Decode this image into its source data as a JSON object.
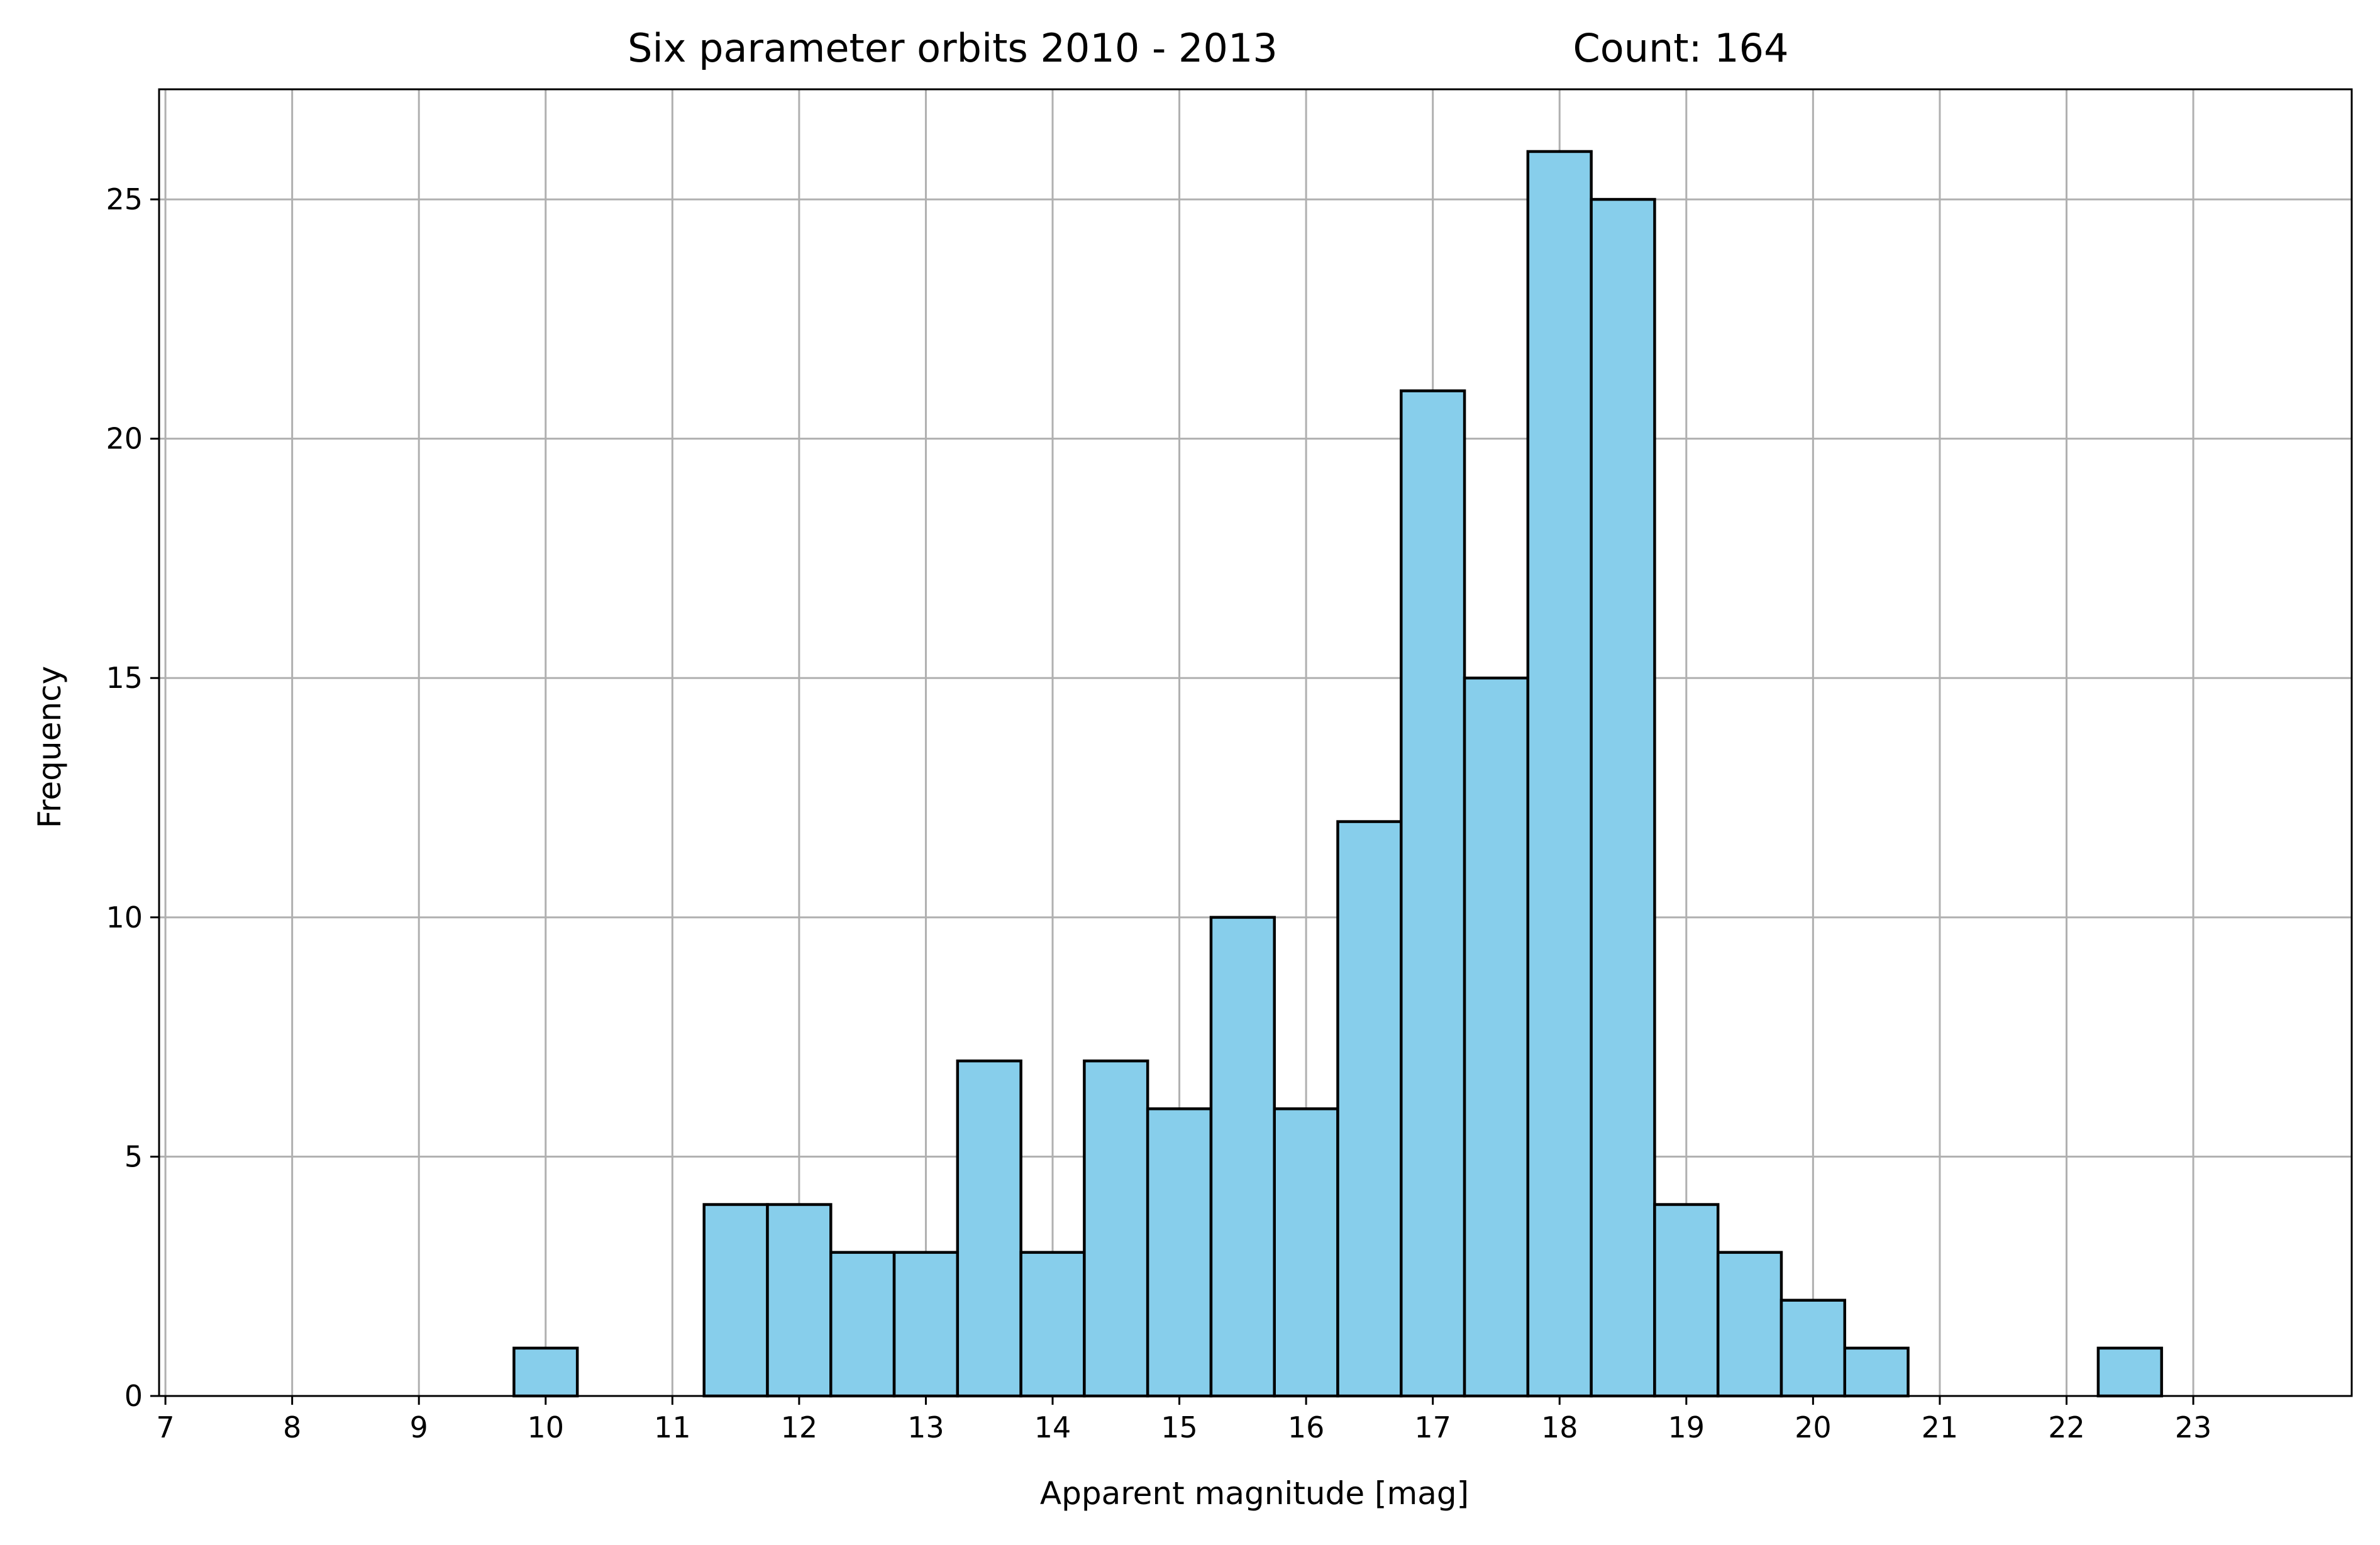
{
  "chart_data": {
    "type": "bar",
    "title_left": "Six parameter orbits 2010 - 2013",
    "title_right": "Count: 164",
    "xlabel": "Apparent magnitude [mag]",
    "ylabel": "Frequency",
    "xlim": [
      6.95,
      24.25
    ],
    "ylim": [
      0,
      27.3
    ],
    "x_ticks": [
      7,
      8,
      9,
      10,
      11,
      12,
      13,
      14,
      15,
      16,
      17,
      18,
      19,
      20,
      21,
      22,
      23
    ],
    "y_ticks": [
      0,
      5,
      10,
      15,
      20,
      25
    ],
    "grid": true,
    "bin_width": 0.5,
    "bins": [
      {
        "start": 7.75,
        "value": 0
      },
      {
        "start": 8.25,
        "value": 0
      },
      {
        "start": 8.75,
        "value": 0
      },
      {
        "start": 9.25,
        "value": 0
      },
      {
        "start": 9.75,
        "value": 1
      },
      {
        "start": 10.25,
        "value": 0
      },
      {
        "start": 10.75,
        "value": 0
      },
      {
        "start": 11.25,
        "value": 4
      },
      {
        "start": 11.75,
        "value": 4
      },
      {
        "start": 12.25,
        "value": 3
      },
      {
        "start": 12.75,
        "value": 3
      },
      {
        "start": 13.25,
        "value": 7
      },
      {
        "start": 13.75,
        "value": 3
      },
      {
        "start": 14.25,
        "value": 7
      },
      {
        "start": 14.75,
        "value": 6
      },
      {
        "start": 15.25,
        "value": 10
      },
      {
        "start": 15.75,
        "value": 6
      },
      {
        "start": 16.25,
        "value": 12
      },
      {
        "start": 16.75,
        "value": 21
      },
      {
        "start": 17.25,
        "value": 15
      },
      {
        "start": 17.75,
        "value": 26
      },
      {
        "start": 18.25,
        "value": 25
      },
      {
        "start": 18.75,
        "value": 4
      },
      {
        "start": 19.25,
        "value": 3
      },
      {
        "start": 19.75,
        "value": 2
      },
      {
        "start": 20.25,
        "value": 1
      },
      {
        "start": 20.75,
        "value": 0
      },
      {
        "start": 21.25,
        "value": 0
      },
      {
        "start": 21.75,
        "value": 0
      },
      {
        "start": 22.25,
        "value": 1
      },
      {
        "start": 22.75,
        "value": 0
      },
      {
        "start": 23.25,
        "value": 0
      },
      {
        "start": 23.75,
        "value": 0
      }
    ],
    "colors": {
      "bar_fill": "#87ceeb",
      "bar_edge": "#000000",
      "grid": "#b0b0b0",
      "axes": "#000000"
    }
  }
}
